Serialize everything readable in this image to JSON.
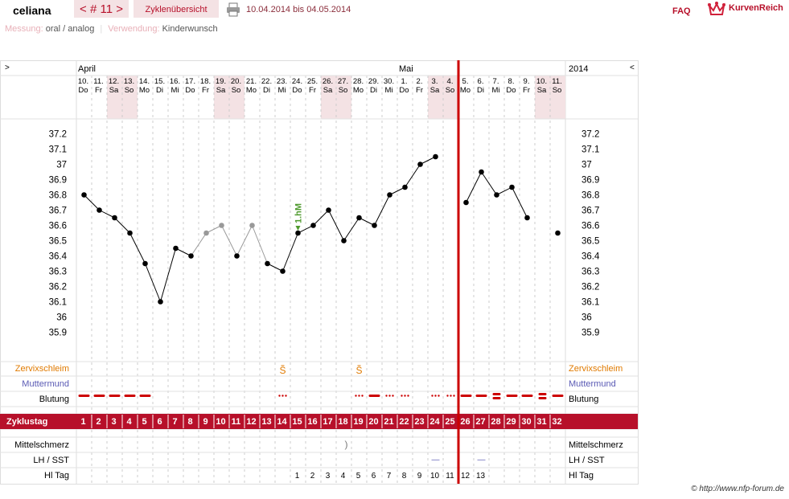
{
  "header": {
    "username": "celiana",
    "cycle_label": "< # 11 >",
    "overview_label": "Zyklenübersicht",
    "date_range": "10.04.2014 bis 04.05.2014",
    "faq_label": "FAQ",
    "brand_label": "KurvenReich"
  },
  "meta": {
    "measure_label": "Messung:",
    "measure_value": "oral / analog",
    "usage_label": "Verwendung:",
    "usage_value": "Kinderwunsch"
  },
  "nav": {
    "prev": ">",
    "next": "<",
    "year": "2014"
  },
  "months": [
    {
      "label": "April",
      "col": 0
    },
    {
      "label": "Mai",
      "col": 21
    }
  ],
  "colors": {
    "accent": "#b7102a",
    "weekend": "#f4e2e4",
    "cervical": "#e07a00",
    "cervix": "#5a5ab4",
    "blood": "#cc0000"
  },
  "chart_data": {
    "type": "line",
    "ylim": [
      35.9,
      37.2
    ],
    "yticks": [
      "37.2",
      "37.1",
      "37",
      "36.9",
      "36.8",
      "36.7",
      "36.6",
      "36.5",
      "36.4",
      "36.3",
      "36.2",
      "36.1",
      "36",
      "35.9"
    ],
    "days": [
      {
        "d": "10.",
        "w": "Do",
        "we": false
      },
      {
        "d": "11.",
        "w": "Fr",
        "we": false
      },
      {
        "d": "12.",
        "w": "Sa",
        "we": true
      },
      {
        "d": "13.",
        "w": "So",
        "we": true
      },
      {
        "d": "14.",
        "w": "Mo",
        "we": false
      },
      {
        "d": "15.",
        "w": "Di",
        "we": false
      },
      {
        "d": "16.",
        "w": "Mi",
        "we": false
      },
      {
        "d": "17.",
        "w": "Do",
        "we": false
      },
      {
        "d": "18.",
        "w": "Fr",
        "we": false
      },
      {
        "d": "19.",
        "w": "Sa",
        "we": true
      },
      {
        "d": "20.",
        "w": "So",
        "we": true
      },
      {
        "d": "21.",
        "w": "Mo",
        "we": false
      },
      {
        "d": "22.",
        "w": "Di",
        "we": false
      },
      {
        "d": "23.",
        "w": "Mi",
        "we": false
      },
      {
        "d": "24.",
        "w": "Do",
        "we": false
      },
      {
        "d": "25.",
        "w": "Fr",
        "we": false
      },
      {
        "d": "26.",
        "w": "Sa",
        "we": true
      },
      {
        "d": "27.",
        "w": "So",
        "we": true
      },
      {
        "d": "28.",
        "w": "Mo",
        "we": false
      },
      {
        "d": "29.",
        "w": "Di",
        "we": false
      },
      {
        "d": "30.",
        "w": "Mi",
        "we": false
      },
      {
        "d": "1.",
        "w": "Do",
        "we": false
      },
      {
        "d": "2.",
        "w": "Fr",
        "we": false
      },
      {
        "d": "3.",
        "w": "Sa",
        "we": true
      },
      {
        "d": "4.",
        "w": "So",
        "we": true
      },
      {
        "d": "5.",
        "w": "Mo",
        "we": false
      },
      {
        "d": "6.",
        "w": "Di",
        "we": false
      },
      {
        "d": "7.",
        "w": "Mi",
        "we": false
      },
      {
        "d": "8.",
        "w": "Do",
        "we": false
      },
      {
        "d": "9.",
        "w": "Fr",
        "we": false
      },
      {
        "d": "10.",
        "w": "Sa",
        "we": true
      },
      {
        "d": "11.",
        "w": "So",
        "we": true
      }
    ],
    "cycle_day_label": "Zyklustag",
    "cycle_days": [
      "1",
      "2",
      "3",
      "4",
      "5",
      "6",
      "7",
      "8",
      "9",
      "10",
      "11",
      "12",
      "13",
      "14",
      "15",
      "16",
      "17",
      "18",
      "19",
      "20",
      "21",
      "22",
      "23",
      "24",
      "25",
      "26",
      "27",
      "28",
      "29",
      "30",
      "31",
      "32"
    ],
    "cycle_break_after": 25,
    "temperatures": [
      36.8,
      36.7,
      36.65,
      36.55,
      36.35,
      36.1,
      36.45,
      36.4,
      36.55,
      36.6,
      36.4,
      36.6,
      36.35,
      36.3,
      36.55,
      36.6,
      36.7,
      36.5,
      36.65,
      36.6,
      36.8,
      36.85,
      37.0,
      37.05,
      null,
      36.75,
      36.95,
      36.8,
      36.85,
      36.65,
      null,
      36.55
    ],
    "excluded_days": [
      8,
      9,
      11
    ],
    "segments": [
      [
        0,
        23
      ],
      [
        25,
        29
      ]
    ],
    "annotation": {
      "day": 14,
      "text": "1.hM"
    },
    "rows": {
      "cervical_label": "Zervixschleim",
      "cervical_marks": [
        {
          "day": 13,
          "text": "S"
        },
        {
          "day": 18,
          "text": "S"
        }
      ],
      "cervix_label": "Muttermund",
      "bleeding_label": "Blutung",
      "bleeding": [
        "strong",
        "strong",
        "strong",
        "strong",
        "strong",
        "none",
        "none",
        "none",
        "none",
        "none",
        "none",
        "none",
        "none",
        "spot",
        "none",
        "none",
        "none",
        "none",
        "spot",
        "strong",
        "spot",
        "spot",
        "none",
        "spot",
        "spot",
        "strong",
        "strong",
        "heavy",
        "strong",
        "strong",
        "heavy",
        "strong"
      ],
      "pain_label": "Mittelschmerz",
      "pain_marks": [
        {
          "day": 17,
          "text": ")"
        }
      ],
      "lh_label": "LH / SST",
      "lh_marks": [
        {
          "day": 23,
          "text": "—"
        },
        {
          "day": 26,
          "text": "—"
        }
      ],
      "hl_label": "Hl Tag",
      "hl_days": [
        "",
        "",
        "",
        "",
        "",
        "",
        "",
        "",
        "",
        "",
        "",
        "",
        "",
        "",
        "1",
        "2",
        "3",
        "4",
        "5",
        "6",
        "7",
        "8",
        "9",
        "10",
        "11",
        "12",
        "13",
        "",
        "",
        "",
        "",
        ""
      ]
    }
  },
  "credit": "© http://www.nfp-forum.de"
}
